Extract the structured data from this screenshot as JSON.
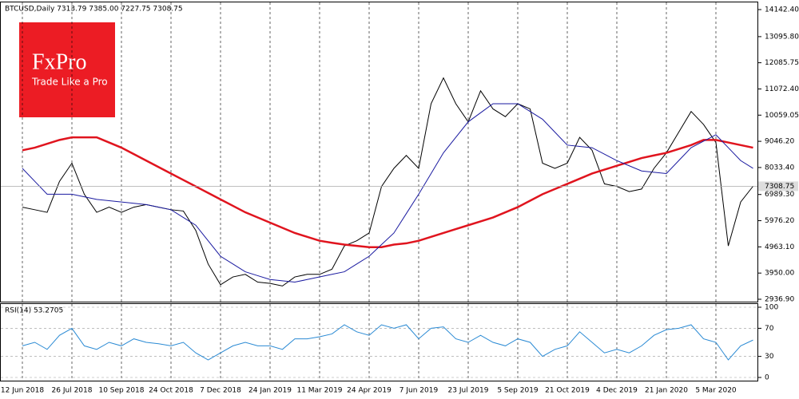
{
  "chart_data": {
    "type": "line",
    "title": "BTCUSD,Daily  7313.79 7385.00 7227.75 7308.75",
    "logo": {
      "brand": "FxPro",
      "tagline": "Trade Like a Pro"
    },
    "categories": [
      "12 Jun 2018",
      null,
      null,
      null,
      "26 Jul 2018",
      null,
      null,
      null,
      "10 Sep 2018",
      null,
      null,
      null,
      "24 Oct 2018",
      null,
      null,
      null,
      "7 Dec 2018",
      null,
      null,
      null,
      "24 Jan 2019",
      null,
      null,
      null,
      "11 Mar 2019",
      null,
      null,
      null,
      "24 Apr 2019",
      null,
      null,
      null,
      "7 Jun 2019",
      null,
      null,
      null,
      "23 Jul 2019",
      null,
      null,
      null,
      "5 Sep 2019",
      null,
      null,
      null,
      "21 Oct 2019",
      null,
      null,
      null,
      "4 Dec 2019",
      null,
      null,
      null,
      "21 Jan 2020",
      null,
      null,
      null,
      "5 Mar 2020",
      null,
      null,
      null
    ],
    "series": [
      {
        "color": "#000000",
        "values": [
          6500,
          6400,
          6300,
          7500,
          8200,
          7000,
          6300,
          6500,
          6300,
          6500,
          6600,
          6500,
          6400,
          6350,
          5600,
          4300,
          3500,
          3800,
          3900,
          3600,
          3550,
          3450,
          3800,
          3900,
          3900,
          4100,
          5000,
          5200,
          5500,
          7300,
          8000,
          8500,
          8000,
          10500,
          11500,
          10500,
          9800,
          11000,
          10300,
          10000,
          10500,
          10300,
          8200,
          8000,
          8200,
          9200,
          8700,
          7400,
          7300,
          7100,
          7200,
          8000,
          8600,
          9400,
          10200,
          9700,
          9000,
          5000,
          6700,
          7308.75
        ]
      },
      {
        "color": "#e0141e",
        "values": [
          8700,
          8800,
          8950,
          9100,
          9200,
          9200,
          9200,
          9000,
          8800,
          8550,
          8300,
          8050,
          7800,
          7550,
          7300,
          7050,
          6800,
          6550,
          6300,
          6100,
          5900,
          5700,
          5500,
          5350,
          5200,
          5120,
          5050,
          5000,
          4950,
          4950,
          5050,
          5100,
          5200,
          5350,
          5500,
          5650,
          5800,
          5950,
          6100,
          6300,
          6500,
          6750,
          7000,
          7200,
          7400,
          7600,
          7800,
          7950,
          8100,
          8250,
          8400,
          8500,
          8600,
          8750,
          8900,
          9100,
          9100,
          9000,
          8900,
          8800
        ]
      },
      {
        "color": "#1a1aa0",
        "values": [
          8000,
          7500,
          7000,
          7000,
          7000,
          6900,
          6800,
          6750,
          6700,
          6650,
          6600,
          6500,
          6400,
          6100,
          5800,
          5200,
          4600,
          4300,
          4000,
          3850,
          3700,
          3650,
          3600,
          3700,
          3800,
          3900,
          4000,
          4300,
          4600,
          5050,
          5500,
          6250,
          7000,
          7800,
          8600,
          9200,
          9800,
          10150,
          10500,
          10500,
          10500,
          10200,
          9900,
          9400,
          8900,
          8850,
          8800,
          8550,
          8300,
          8100,
          7900,
          7850,
          7800,
          8300,
          8800,
          9050,
          9300,
          8800,
          8300,
          8000
        ]
      }
    ],
    "ylim": [
      2936.9,
      14142.4
    ],
    "yticks": [
      {
        "value": 14142.4,
        "label": "14142.40"
      },
      {
        "value": 13095.8,
        "label": "13095.80"
      },
      {
        "value": 12085.75,
        "label": "12085.75"
      },
      {
        "value": 11072.4,
        "label": "11072.40"
      },
      {
        "value": 10059.05,
        "label": "10059.05"
      },
      {
        "value": 9046.2,
        "label": "9046.20"
      },
      {
        "value": 8033.4,
        "label": "8033.40"
      },
      {
        "value": 6989.3,
        "label": "6989.30"
      },
      {
        "value": 5976.2,
        "label": "5976.20"
      },
      {
        "value": 4963.1,
        "label": "4963.10"
      },
      {
        "value": 3950,
        "label": "3950.00"
      },
      {
        "value": 2936.9,
        "label": "2936.90"
      }
    ],
    "rsi": {
      "title": "RSI(14) 53.2705",
      "color": "#2a8ad4",
      "values": [
        45,
        50,
        40,
        60,
        70,
        45,
        40,
        50,
        45,
        55,
        50,
        48,
        45,
        50,
        35,
        25,
        35,
        45,
        50,
        45,
        45,
        40,
        55,
        55,
        58,
        62,
        75,
        65,
        60,
        75,
        70,
        75,
        55,
        70,
        72,
        55,
        50,
        60,
        50,
        45,
        55,
        50,
        30,
        40,
        45,
        65,
        50,
        35,
        40,
        35,
        45,
        60,
        68,
        70,
        75,
        55,
        50,
        25,
        45,
        53.2705
      ],
      "ylim": [
        0,
        100
      ],
      "yticks": [
        0,
        30,
        70,
        100
      ]
    }
  }
}
